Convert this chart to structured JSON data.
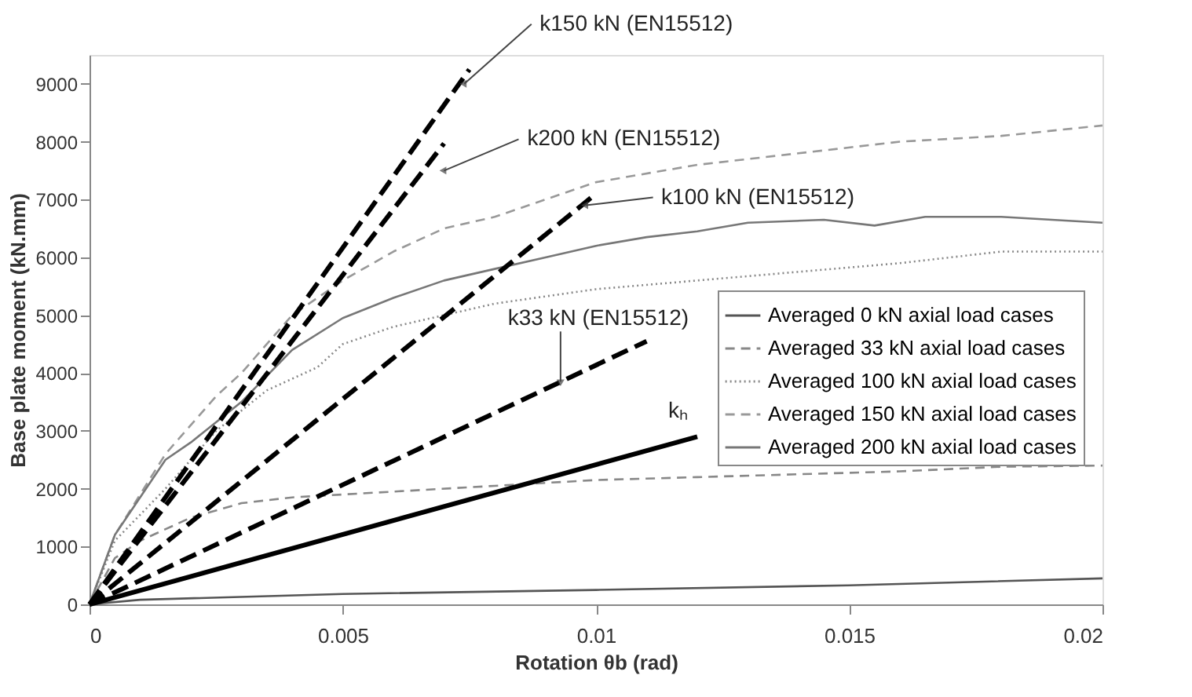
{
  "chart_data": {
    "type": "line",
    "xlabel": "Rotation θb (rad)",
    "ylabel": "Base plate moment (kN.mm)",
    "xlim": [
      0,
      0.02
    ],
    "xticks": [
      0,
      0.005,
      0.01,
      0.015,
      0.02
    ],
    "ylim": [
      0,
      9500
    ],
    "yticks": [
      0,
      1000,
      2000,
      3000,
      4000,
      5000,
      6000,
      7000,
      8000,
      9000
    ],
    "grid": false,
    "legend": "right",
    "marker": "none",
    "series": [
      {
        "name": "Averaged 0 kN axial load cases",
        "color": "#555555",
        "line_style": "solid",
        "x": [
          0,
          0.001,
          0.005,
          0.01,
          0.015,
          0.02
        ],
        "values": [
          0,
          80,
          180,
          250,
          330,
          450
        ]
      },
      {
        "name": "Averaged 33 kN axial load cases",
        "color": "#888888",
        "line_style": "dashed",
        "x": [
          0,
          0.0005,
          0.001,
          0.002,
          0.003,
          0.004,
          0.006,
          0.008,
          0.01,
          0.012,
          0.014,
          0.016,
          0.018,
          0.02
        ],
        "values": [
          0,
          800,
          1100,
          1500,
          1750,
          1850,
          1950,
          2050,
          2150,
          2200,
          2250,
          2300,
          2380,
          2400
        ]
      },
      {
        "name": "Averaged 100 kN axial load cases",
        "color": "#888888",
        "line_style": "dotted",
        "x": [
          0,
          0.0005,
          0.0015,
          0.0025,
          0.0035,
          0.0045,
          0.005,
          0.006,
          0.008,
          0.01,
          0.012,
          0.014,
          0.016,
          0.018,
          0.02
        ],
        "values": [
          0,
          1100,
          2000,
          3000,
          3700,
          4100,
          4500,
          4800,
          5200,
          5450,
          5600,
          5750,
          5900,
          6100,
          6100
        ]
      },
      {
        "name": "Averaged 150 kN axial load cases",
        "color": "#999999",
        "line_style": "dashed",
        "x": [
          0,
          0.0005,
          0.0015,
          0.0025,
          0.003,
          0.004,
          0.005,
          0.006,
          0.007,
          0.008,
          0.009,
          0.01,
          0.012,
          0.014,
          0.016,
          0.018,
          0.02
        ],
        "values": [
          0,
          1200,
          2600,
          3600,
          4000,
          5000,
          5600,
          6100,
          6500,
          6700,
          7000,
          7300,
          7600,
          7800,
          8000,
          8100,
          8280
        ]
      },
      {
        "name": "Averaged 200 kN axial load cases",
        "color": "#777777",
        "line_style": "solid",
        "x": [
          0,
          0.0005,
          0.0015,
          0.002,
          0.003,
          0.004,
          0.005,
          0.006,
          0.007,
          0.008,
          0.009,
          0.01,
          0.011,
          0.012,
          0.013,
          0.0145,
          0.0155,
          0.0165,
          0.018,
          0.02
        ],
        "values": [
          0,
          1200,
          2500,
          2800,
          3500,
          4400,
          4950,
          5300,
          5600,
          5800,
          6000,
          6200,
          6350,
          6450,
          6600,
          6650,
          6550,
          6700,
          6700,
          6600
        ]
      },
      {
        "color": "#000000",
        "line_style": "dashed",
        "x": [
          0,
          0.0075
        ],
        "values": [
          0,
          9250
        ]
      },
      {
        "color": "#000000",
        "line_style": "dashed",
        "x": [
          0,
          0.007
        ],
        "values": [
          0,
          7970
        ]
      },
      {
        "color": "#000000",
        "line_style": "dashed",
        "x": [
          0,
          0.01
        ],
        "values": [
          0,
          7100
        ]
      },
      {
        "color": "#000000",
        "line_style": "dashed",
        "x": [
          0,
          0.011
        ],
        "values": [
          0,
          4550
        ]
      },
      {
        "color": "#000000",
        "line_style": "solid",
        "x": [
          0,
          0.012
        ],
        "values": [
          0,
          2900
        ]
      }
    ],
    "annotations": [
      {
        "text": "k150 kN (EN15512)",
        "x": 0.0074,
        "y": 9000
      },
      {
        "text": "k200 kN (EN15512)",
        "x": 0.007,
        "y": 7500
      },
      {
        "text": "k100 kN (EN15512)",
        "x": 0.0098,
        "y": 6900
      },
      {
        "text": "k33 kN (EN15512)",
        "x": 0.0093,
        "y": 3850
      },
      {
        "text": "kₕ",
        "x": 0.012,
        "y": 2900
      }
    ]
  }
}
